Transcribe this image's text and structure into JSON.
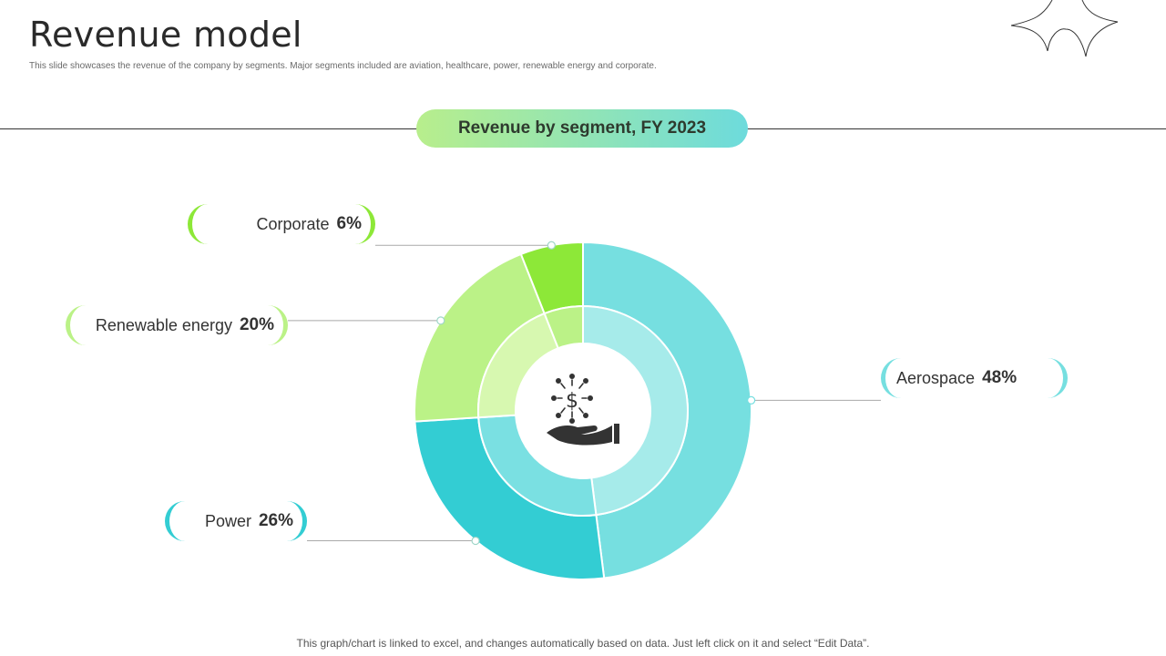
{
  "page": {
    "title": "Revenue model",
    "subtitle": "This slide showcases the revenue of the company by segments. Major segments included are aviation, healthcare, power, renewable energy and corporate.",
    "footnote": "This graph/chart is linked to excel, and changes automatically based on data. Just left click on it and select “Edit Data”."
  },
  "chart_data": {
    "type": "pie",
    "title": "Revenue by segment, FY 2023",
    "unit": "%",
    "style": "donut",
    "center_icon": "money-hand-icon",
    "legend": "callout-labels",
    "slices": [
      {
        "label": "Aerospace",
        "value": 48,
        "display": "48%",
        "color": "#76dfe0",
        "inner_color": "#a6ebea"
      },
      {
        "label": "Power",
        "value": 26,
        "display": "26%",
        "color": "#33cdd3",
        "inner_color": "#7ae0e2"
      },
      {
        "label": "Renewable energy",
        "value": 20,
        "display": "20%",
        "color": "#bbf287",
        "inner_color": "#d7f8b0"
      },
      {
        "label": "Corporate",
        "value": 6,
        "display": "6%",
        "color": "#8de838",
        "inner_color": "#bbf287"
      }
    ]
  }
}
